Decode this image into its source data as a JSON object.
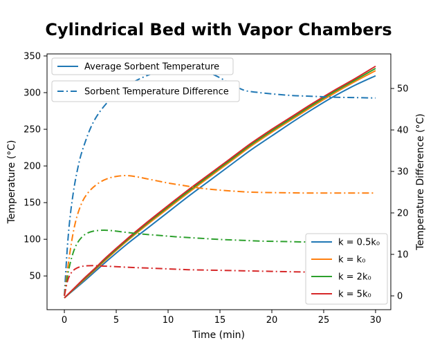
{
  "chart_data": {
    "type": "line",
    "title": "Cylindrical Bed with Vapor Chambers",
    "xlabel": "Time (min)",
    "ylabel_left": "Temperature (°C)",
    "ylabel_right": "Temperature Difference (°C)",
    "x_ticks": [
      0,
      5,
      10,
      15,
      20,
      25,
      30
    ],
    "y_left_ticks": [
      50,
      100,
      150,
      200,
      250,
      300,
      350
    ],
    "y_right_ticks": [
      0,
      10,
      20,
      30,
      40,
      50
    ],
    "x_range": [
      -1.67,
      31.47
    ],
    "y_left_range": [
      4,
      352.8
    ],
    "y_right_range": [
      -3.33,
      58.33
    ],
    "grid": false,
    "colors": {
      "blue": "#1f77b4",
      "orange": "#ff7f0e",
      "green": "#2ca02c",
      "red": "#d62728",
      "legend_border": "#cccccc",
      "spine": "#000000"
    },
    "legend_top": [
      {
        "label": "Average Sorbent Temperature",
        "style": "solid",
        "color": "#1f77b4"
      },
      {
        "label": "Sorbent Temperature Difference",
        "style": "dashdot",
        "color": "#1f77b4"
      }
    ],
    "legend_bottom": [
      {
        "label": "k = 0.5k₀",
        "color": "#1f77b4"
      },
      {
        "label": "k = k₀",
        "color": "#ff7f0e"
      },
      {
        "label": "k = 2k₀",
        "color": "#2ca02c"
      },
      {
        "label": "k = 5k₀",
        "color": "#d62728"
      }
    ],
    "series": [
      {
        "name": "avg-temp-k0.5",
        "axis": "left",
        "style": "solid",
        "color": "#1f77b4",
        "points": [
          [
            0,
            20
          ],
          [
            1,
            32
          ],
          [
            2,
            44
          ],
          [
            3,
            56.5
          ],
          [
            4,
            69
          ],
          [
            6,
            93
          ],
          [
            8,
            115
          ],
          [
            10,
            137
          ],
          [
            12,
            159
          ],
          [
            14,
            180
          ],
          [
            16,
            201
          ],
          [
            18,
            222
          ],
          [
            20,
            241
          ],
          [
            22,
            260
          ],
          [
            24,
            278
          ],
          [
            26,
            295
          ],
          [
            28,
            310
          ],
          [
            30,
            323
          ]
        ]
      },
      {
        "name": "avg-temp-k1",
        "axis": "left",
        "style": "solid",
        "color": "#ff7f0e",
        "points": [
          [
            0,
            20
          ],
          [
            1,
            33
          ],
          [
            2,
            46
          ],
          [
            3,
            59
          ],
          [
            4,
            72
          ],
          [
            6,
            97
          ],
          [
            8,
            120
          ],
          [
            10,
            142
          ],
          [
            12,
            164
          ],
          [
            14,
            185
          ],
          [
            16,
            206
          ],
          [
            18,
            227
          ],
          [
            20,
            246
          ],
          [
            22,
            264
          ],
          [
            24,
            282
          ],
          [
            26,
            299
          ],
          [
            28,
            315
          ],
          [
            30,
            330
          ]
        ]
      },
      {
        "name": "avg-temp-k2",
        "axis": "left",
        "style": "solid",
        "color": "#2ca02c",
        "points": [
          [
            0,
            20
          ],
          [
            1,
            33.5
          ],
          [
            2,
            47
          ],
          [
            3,
            60
          ],
          [
            4,
            73.5
          ],
          [
            6,
            98.5
          ],
          [
            8,
            122
          ],
          [
            10,
            144
          ],
          [
            12,
            166
          ],
          [
            14,
            187
          ],
          [
            16,
            208
          ],
          [
            18,
            229
          ],
          [
            20,
            248
          ],
          [
            22,
            266
          ],
          [
            24,
            284
          ],
          [
            26,
            301
          ],
          [
            28,
            317
          ],
          [
            30,
            333
          ]
        ]
      },
      {
        "name": "avg-temp-k5",
        "axis": "left",
        "style": "solid",
        "color": "#d62728",
        "points": [
          [
            0,
            20
          ],
          [
            1,
            34
          ],
          [
            2,
            48
          ],
          [
            3,
            61
          ],
          [
            4,
            75
          ],
          [
            6,
            100
          ],
          [
            8,
            123.5
          ],
          [
            10,
            146
          ],
          [
            12,
            168
          ],
          [
            14,
            189
          ],
          [
            16,
            210
          ],
          [
            18,
            231
          ],
          [
            20,
            250
          ],
          [
            22,
            268
          ],
          [
            24,
            286
          ],
          [
            26,
            303
          ],
          [
            28,
            319
          ],
          [
            30,
            336
          ]
        ]
      },
      {
        "name": "temp-diff-k0.5",
        "axis": "right",
        "style": "dashdot",
        "color": "#1f77b4",
        "points": [
          [
            0,
            0
          ],
          [
            0.3,
            12
          ],
          [
            0.6,
            20
          ],
          [
            1,
            27
          ],
          [
            1.5,
            33
          ],
          [
            2,
            37
          ],
          [
            2.5,
            40.3
          ],
          [
            3,
            42.8
          ],
          [
            3.6,
            45
          ],
          [
            4.5,
            47.6
          ],
          [
            5.5,
            49.7
          ],
          [
            7,
            52
          ],
          [
            8.5,
            53.6
          ],
          [
            10,
            54.6
          ],
          [
            11.5,
            55
          ],
          [
            13,
            54.6
          ],
          [
            14.5,
            53.2
          ],
          [
            16,
            51.2
          ],
          [
            17.3,
            49.6
          ],
          [
            18.5,
            49.1
          ],
          [
            20,
            48.7
          ],
          [
            22,
            48.3
          ],
          [
            24,
            48.1
          ],
          [
            26,
            47.9
          ],
          [
            28,
            47.8
          ],
          [
            30,
            47.7
          ]
        ]
      },
      {
        "name": "temp-diff-k1",
        "axis": "right",
        "style": "dashdot",
        "color": "#ff7f0e",
        "points": [
          [
            0,
            0
          ],
          [
            0.4,
            8
          ],
          [
            0.8,
            14.5
          ],
          [
            1.2,
            19
          ],
          [
            1.7,
            22.5
          ],
          [
            2.2,
            24.6
          ],
          [
            2.8,
            26.2
          ],
          [
            3.5,
            27.5
          ],
          [
            4.2,
            28.3
          ],
          [
            5,
            28.8
          ],
          [
            6,
            29
          ],
          [
            7,
            28.7
          ],
          [
            8,
            28.2
          ],
          [
            9,
            27.7
          ],
          [
            10,
            27.2
          ],
          [
            11.5,
            26.6
          ],
          [
            13,
            26
          ],
          [
            14.5,
            25.6
          ],
          [
            16,
            25.3
          ],
          [
            18,
            25
          ],
          [
            20,
            24.9
          ],
          [
            23,
            24.8
          ],
          [
            26,
            24.8
          ],
          [
            30,
            24.8
          ]
        ]
      },
      {
        "name": "temp-diff-k2",
        "axis": "right",
        "style": "dashdot",
        "color": "#2ca02c",
        "points": [
          [
            0,
            0
          ],
          [
            0.4,
            6
          ],
          [
            0.8,
            10
          ],
          [
            1.2,
            12.5
          ],
          [
            1.7,
            14.2
          ],
          [
            2.2,
            15.1
          ],
          [
            2.8,
            15.6
          ],
          [
            3.5,
            15.8
          ],
          [
            4.2,
            15.8
          ],
          [
            5,
            15.6
          ],
          [
            6,
            15.3
          ],
          [
            7.5,
            14.9
          ],
          [
            9,
            14.6
          ],
          [
            11,
            14.2
          ],
          [
            13,
            13.9
          ],
          [
            15,
            13.6
          ],
          [
            17,
            13.4
          ],
          [
            19,
            13.2
          ],
          [
            21,
            13.1
          ],
          [
            23,
            13
          ],
          [
            26,
            12.9
          ],
          [
            30,
            12.9
          ]
        ]
      },
      {
        "name": "temp-diff-k5",
        "axis": "right",
        "style": "dashdot",
        "color": "#d62728",
        "points": [
          [
            0,
            0
          ],
          [
            0.3,
            3.5
          ],
          [
            0.6,
            5.3
          ],
          [
            1,
            6.4
          ],
          [
            1.5,
            7
          ],
          [
            2,
            7.2
          ],
          [
            2.7,
            7.3
          ],
          [
            3.5,
            7.2
          ],
          [
            4.5,
            7.1
          ],
          [
            6,
            6.9
          ],
          [
            8,
            6.7
          ],
          [
            10,
            6.5
          ],
          [
            12,
            6.3
          ],
          [
            14,
            6.2
          ],
          [
            16,
            6.1
          ],
          [
            18,
            6
          ],
          [
            20,
            5.9
          ],
          [
            22,
            5.8
          ],
          [
            25,
            5.7
          ],
          [
            30,
            5.6
          ]
        ]
      }
    ]
  }
}
